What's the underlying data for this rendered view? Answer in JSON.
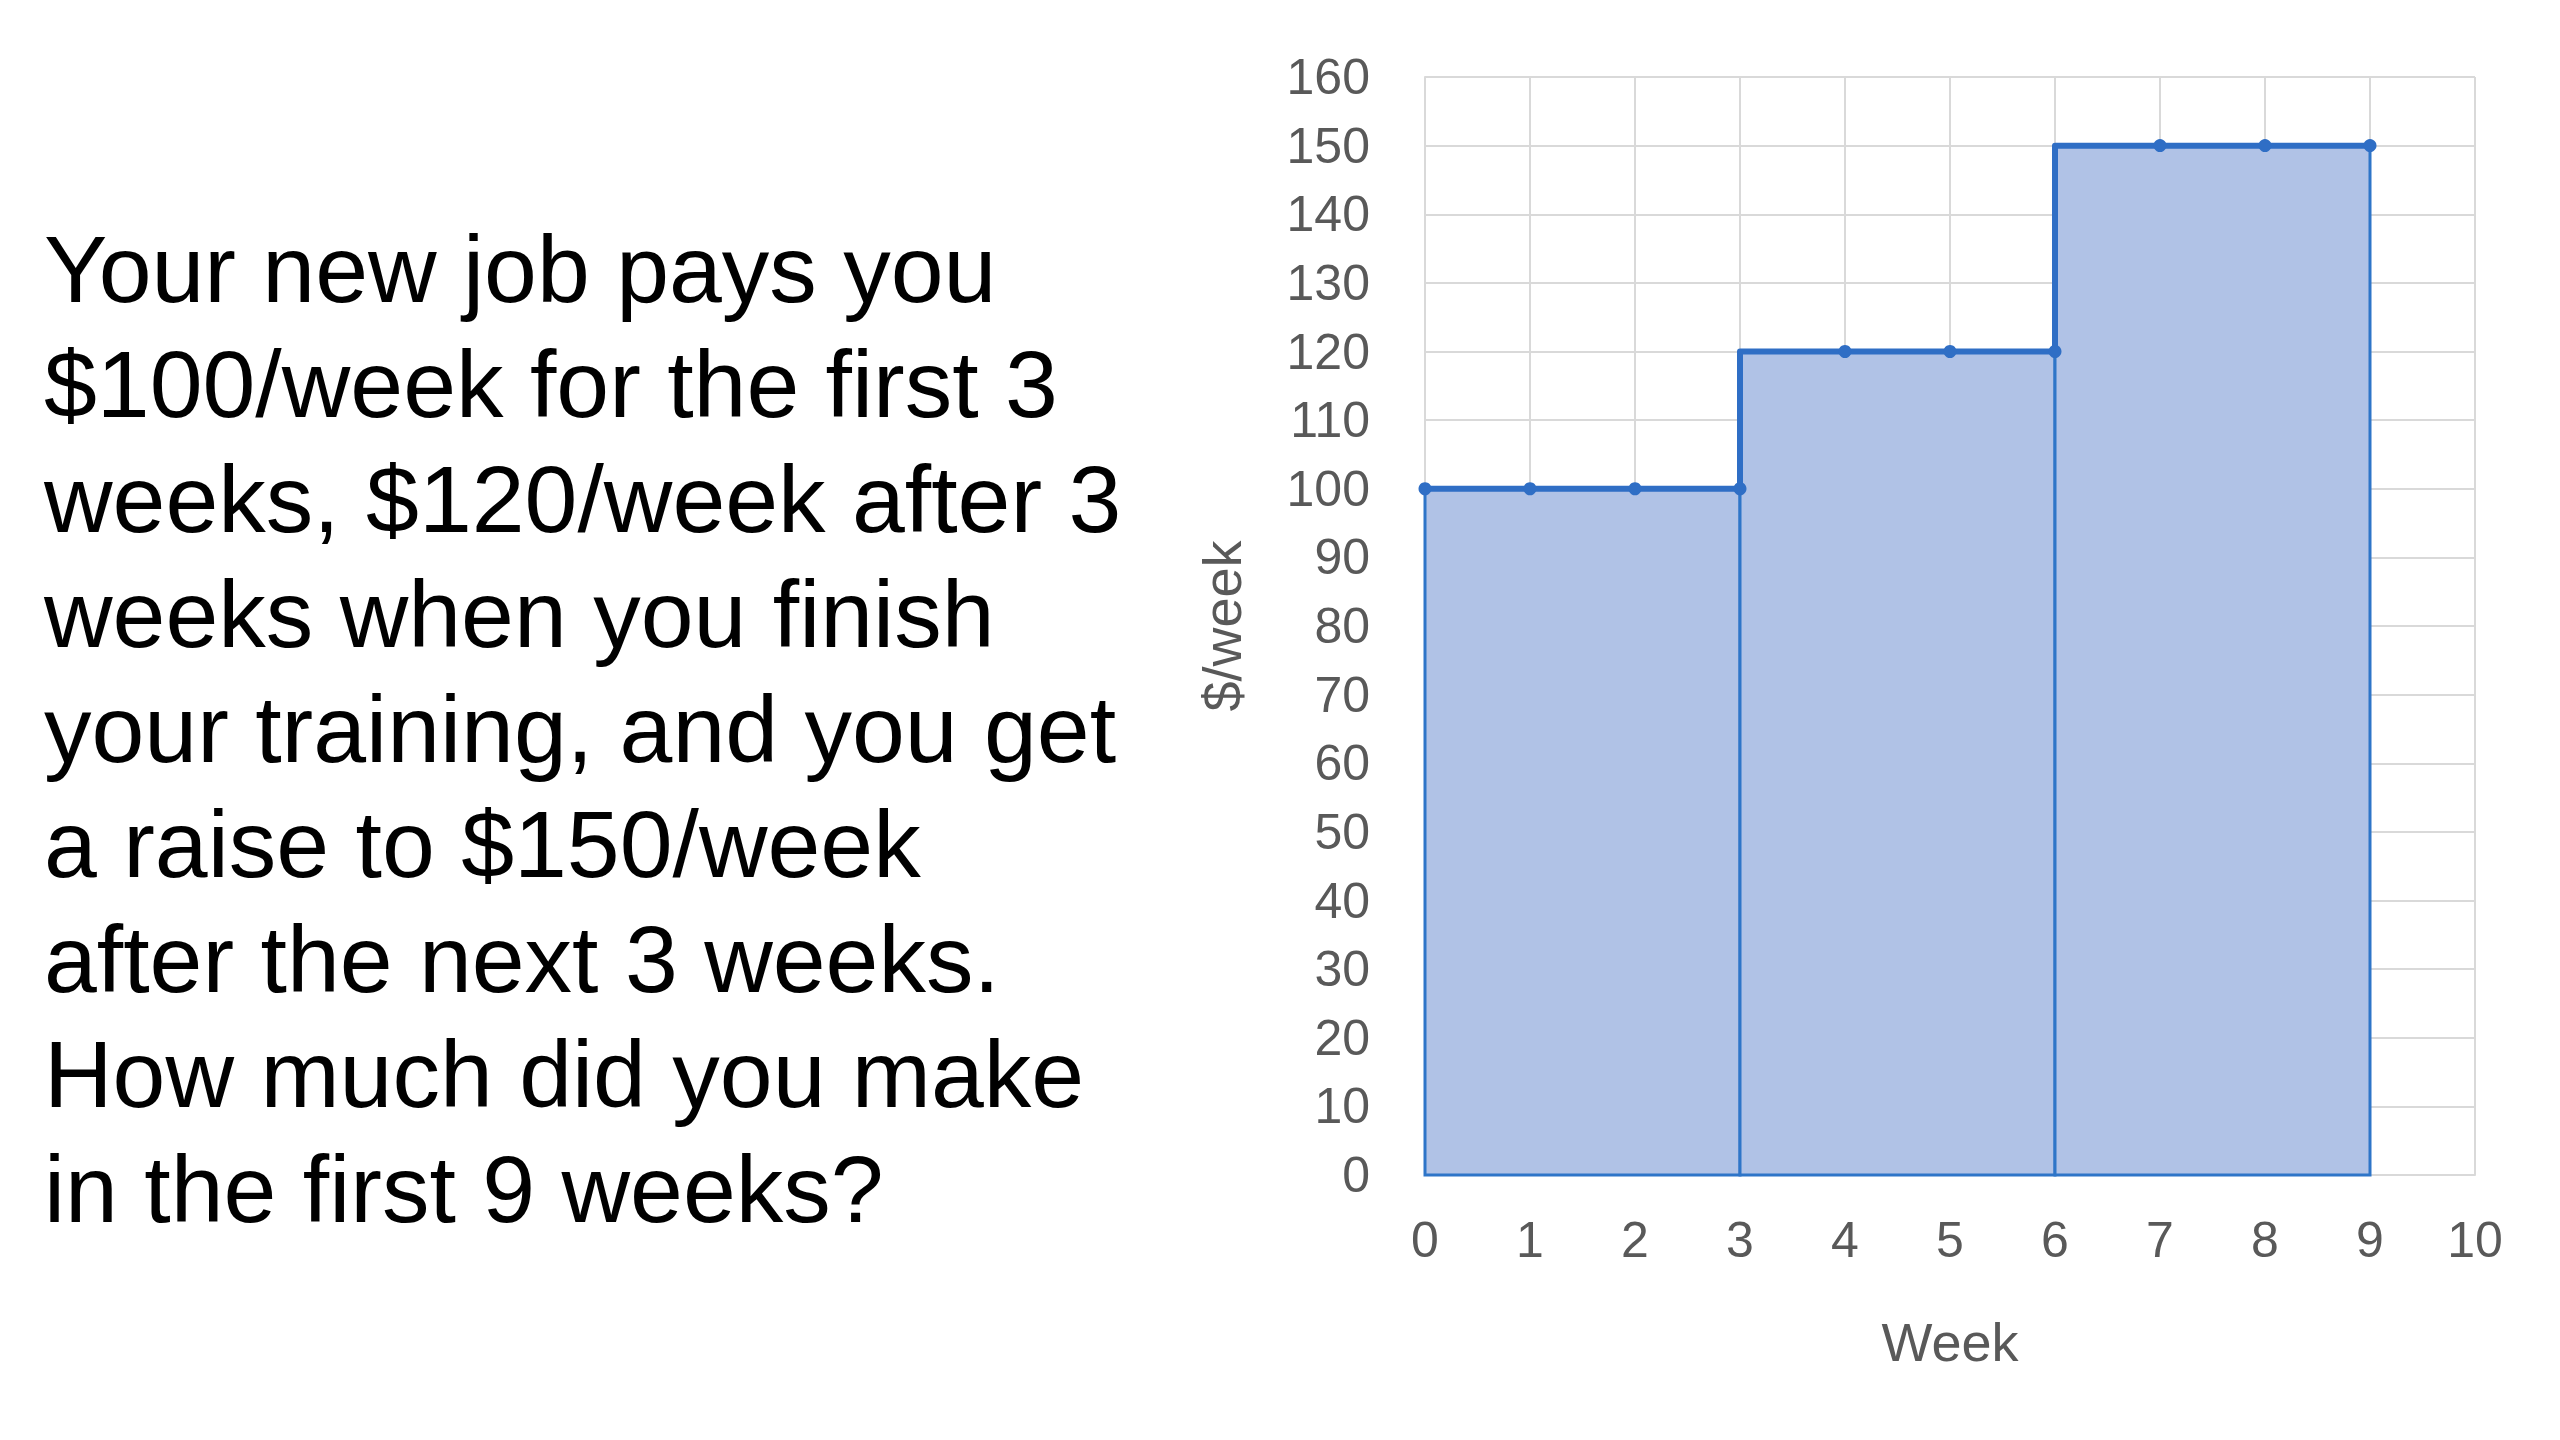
{
  "chart_data": {
    "type": "step",
    "annotations": [
      "Your new job pays you $100/week for the first 3 weeks, $120/week after 3 weeks when you finish your training, and you get a raise to $150/week after the next 3 weeks. How much did you make in the first 9 weeks?"
    ],
    "xlabel": "Week",
    "ylabel": "$/week",
    "xlim": [
      0,
      10
    ],
    "xticks": [
      0,
      1,
      2,
      3,
      4,
      5,
      6,
      7,
      8,
      9,
      10
    ],
    "ylim": [
      0,
      160
    ],
    "yticks": [
      0,
      10,
      20,
      30,
      40,
      50,
      60,
      70,
      80,
      90,
      100,
      110,
      120,
      130,
      140,
      150,
      160
    ],
    "grid": true,
    "marker": "circle",
    "series": [
      {
        "type": "histogram",
        "bins": [
          0,
          3,
          6,
          9
        ],
        "values": [
          100,
          120,
          150
        ],
        "color": "#b0c2e6"
      },
      {
        "x": [
          0,
          1,
          2,
          3,
          4,
          5,
          6,
          7,
          8,
          9
        ],
        "values": [
          100,
          100,
          100,
          100,
          120,
          120,
          120,
          150,
          150,
          150
        ],
        "color": "#2f6ec5"
      }
    ]
  }
}
